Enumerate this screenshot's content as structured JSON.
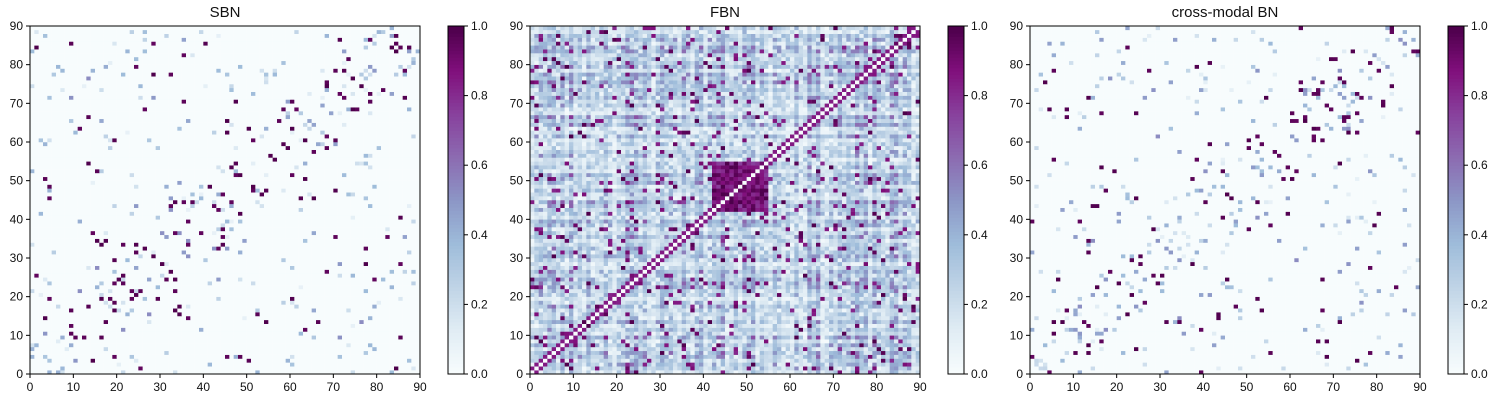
{
  "chart_data": [
    {
      "type": "heatmap",
      "title": "SBN",
      "xlabel": "",
      "ylabel": "",
      "xlim": [
        0,
        90
      ],
      "ylim": [
        0,
        90
      ],
      "xticks": [
        0,
        10,
        20,
        30,
        40,
        50,
        60,
        70,
        80,
        90
      ],
      "yticks": [
        0,
        10,
        20,
        30,
        40,
        50,
        60,
        70,
        80,
        90
      ],
      "colorbar": {
        "range": [
          0.0,
          1.0
        ],
        "ticks": [
          "0.0",
          "0.2",
          "0.4",
          "0.6",
          "0.8",
          "1.0"
        ]
      },
      "colormap": [
        "#f7fcfd",
        "#e0ecf4",
        "#bfd3e6",
        "#9ebcda",
        "#8c96c6",
        "#8c6bb1",
        "#88419d",
        "#810f7c",
        "#4d004b"
      ],
      "pattern": "sparse",
      "hot_block": null,
      "seed": 11
    },
    {
      "type": "heatmap",
      "title": "FBN",
      "xlabel": "",
      "ylabel": "",
      "xlim": [
        0,
        90
      ],
      "ylim": [
        0,
        90
      ],
      "xticks": [
        0,
        10,
        20,
        30,
        40,
        50,
        60,
        70,
        80,
        90
      ],
      "yticks": [
        0,
        10,
        20,
        30,
        40,
        50,
        60,
        70,
        80,
        90
      ],
      "colorbar": {
        "range": [
          0.0,
          1.0
        ],
        "ticks": [
          "0.0",
          "0.2",
          "0.4",
          "0.6",
          "0.8",
          "1.0"
        ]
      },
      "colormap": [
        "#f7fcfd",
        "#e0ecf4",
        "#bfd3e6",
        "#9ebcda",
        "#8c96c6",
        "#8c6bb1",
        "#88419d",
        "#810f7c",
        "#4d004b"
      ],
      "pattern": "dense",
      "hot_block": [
        42,
        54
      ],
      "seed": 23
    },
    {
      "type": "heatmap",
      "title": "cross-modal BN",
      "xlabel": "",
      "ylabel": "",
      "xlim": [
        0,
        90
      ],
      "ylim": [
        0,
        90
      ],
      "xticks": [
        0,
        10,
        20,
        30,
        40,
        50,
        60,
        70,
        80,
        90
      ],
      "yticks": [
        0,
        10,
        20,
        30,
        40,
        50,
        60,
        70,
        80,
        90
      ],
      "colorbar": {
        "range": [
          0.0,
          1.0
        ],
        "ticks": [
          "0.0",
          "0.2",
          "0.4",
          "0.6",
          "0.8",
          "1.0"
        ]
      },
      "colormap": [
        "#f7fcfd",
        "#e0ecf4",
        "#bfd3e6",
        "#9ebcda",
        "#8c96c6",
        "#8c6bb1",
        "#88419d",
        "#810f7c",
        "#4d004b"
      ],
      "pattern": "sparse",
      "hot_block": null,
      "seed": 37
    }
  ]
}
